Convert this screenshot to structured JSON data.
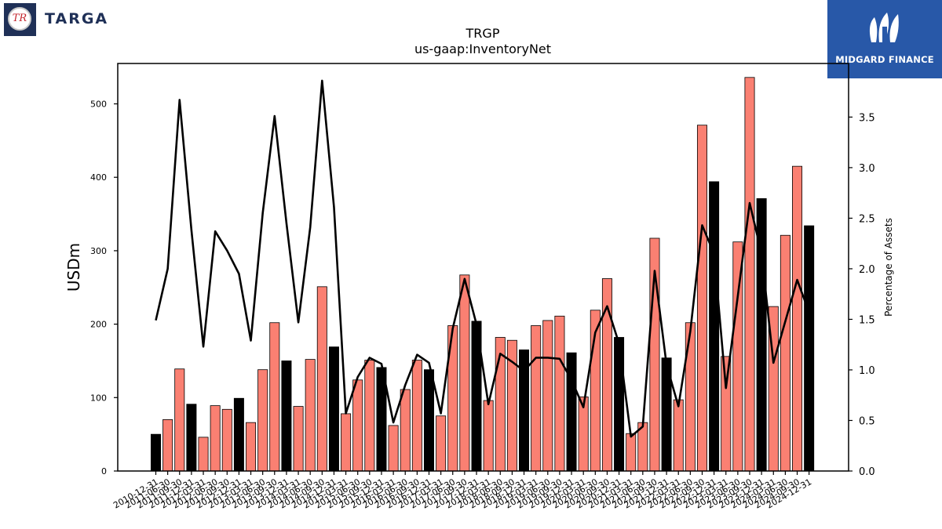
{
  "branding": {
    "left_logo_text": "TR",
    "left_name": "TARGA",
    "right_name": "MIDGARD FINANCE"
  },
  "colors": {
    "bar_default": "#fa8072",
    "bar_year_end": "#000000",
    "line": "#000000",
    "brand_navy": "#1f3057",
    "brand_blue": "#2858a8"
  },
  "chart_data": {
    "type": "bar",
    "title": "TRGP",
    "subtitle": "us-gaap:InventoryNet",
    "ylabel": "USDm",
    "y2label": "Percentage of Assets",
    "ylim": [
      0,
      555
    ],
    "y2lim": [
      0,
      4.03
    ],
    "yticks": [
      0,
      100,
      200,
      300,
      400,
      500
    ],
    "y2ticks": [
      "0.0",
      "0.5",
      "1.0",
      "1.5",
      "2.0",
      "2.5",
      "3.0",
      "3.5"
    ],
    "grid": false,
    "categories": [
      "2010-12-31",
      "2011-06-30",
      "2011-09-30",
      "2011-12-31",
      "2012-03-31",
      "2012-06-30",
      "2012-09-30",
      "2012-12-31",
      "2013-03-31",
      "2013-06-30",
      "2013-09-30",
      "2013-12-31",
      "2014-03-31",
      "2014-06-30",
      "2014-09-30",
      "2014-12-31",
      "2015-03-31",
      "2015-06-30",
      "2015-09-30",
      "2015-12-31",
      "2016-03-31",
      "2016-06-30",
      "2016-09-30",
      "2016-12-31",
      "2017-03-31",
      "2017-06-30",
      "2017-09-30",
      "2017-12-31",
      "2018-03-31",
      "2018-06-30",
      "2018-09-30",
      "2018-12-31",
      "2019-03-31",
      "2019-06-30",
      "2019-09-30",
      "2019-12-31",
      "2020-03-31",
      "2020-06-30",
      "2020-09-30",
      "2020-12-31",
      "2021-03-31",
      "2021-06-30",
      "2021-09-30",
      "2021-12-31",
      "2022-03-31",
      "2022-06-30",
      "2022-09-30",
      "2022-12-31",
      "2023-03-31",
      "2023-06-30",
      "2023-09-30",
      "2023-12-31",
      "2024-03-31",
      "2024-06-30",
      "2024-09-30",
      "2024-12-31"
    ],
    "series": [
      {
        "kind": "bar",
        "axis": "left",
        "values": [
          50,
          70,
          139,
          91,
          46,
          89,
          84,
          99,
          66,
          138,
          202,
          150,
          88,
          152,
          251,
          169,
          78,
          124,
          151,
          141,
          62,
          111,
          151,
          138,
          75,
          198,
          267,
          204,
          96,
          182,
          178,
          165,
          198,
          205,
          211,
          161,
          101,
          219,
          262,
          182,
          51,
          66,
          317,
          154,
          97,
          202,
          471,
          394,
          156,
          312,
          536,
          371,
          224,
          321,
          415,
          334
        ]
      },
      {
        "kind": "line",
        "axis": "right",
        "values": [
          1.49,
          2.0,
          3.67,
          2.38,
          1.23,
          2.37,
          2.18,
          1.95,
          1.29,
          2.55,
          3.51,
          2.45,
          1.47,
          2.41,
          3.86,
          2.61,
          0.57,
          0.93,
          1.12,
          1.06,
          0.48,
          0.85,
          1.15,
          1.07,
          0.57,
          1.41,
          1.9,
          1.45,
          0.66,
          1.16,
          1.08,
          0.99,
          1.12,
          1.12,
          1.11,
          0.9,
          0.63,
          1.37,
          1.63,
          1.26,
          0.34,
          0.44,
          1.98,
          1.05,
          0.64,
          1.38,
          2.43,
          2.15,
          0.82,
          1.73,
          2.65,
          2.15,
          1.07,
          1.48,
          1.89,
          1.57
        ]
      }
    ]
  }
}
